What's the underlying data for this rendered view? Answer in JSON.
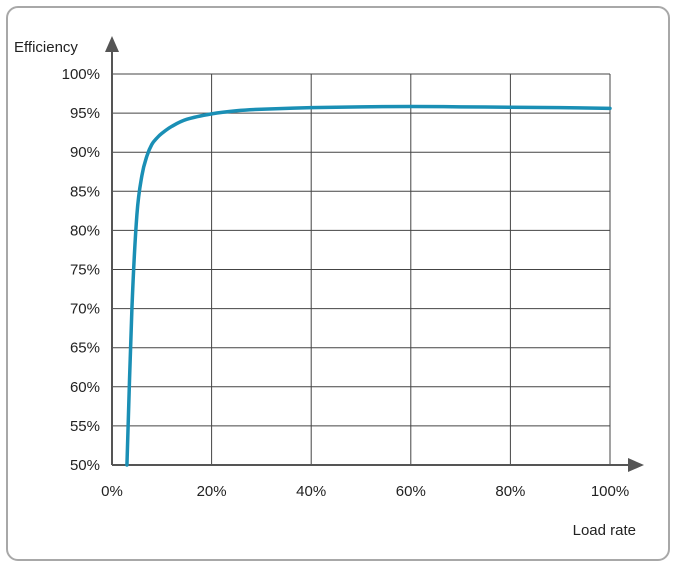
{
  "chart_data": {
    "type": "line",
    "xlabel": "Load rate",
    "ylabel": "Efficiency",
    "xlim": [
      0,
      100
    ],
    "ylim": [
      50,
      100
    ],
    "x_ticks": [
      "0%",
      "20%",
      "40%",
      "60%",
      "80%",
      "100%"
    ],
    "y_ticks": [
      "50%",
      "55%",
      "60%",
      "65%",
      "70%",
      "75%",
      "80%",
      "85%",
      "90%",
      "95%",
      "100%"
    ],
    "grid": true,
    "colors": {
      "series": "#1a8fb5",
      "axis": "#555555",
      "grid": "#444444"
    },
    "series": [
      {
        "x": [
          3,
          4,
          5,
          6,
          7,
          8,
          9,
          10,
          12,
          15,
          20,
          25,
          30,
          40,
          50,
          60,
          70,
          80,
          90,
          100
        ],
        "y": [
          50,
          70,
          82,
          87,
          89.5,
          91,
          91.8,
          92.4,
          93.3,
          94.2,
          94.9,
          95.3,
          95.5,
          95.7,
          95.8,
          95.85,
          95.8,
          95.75,
          95.7,
          95.6
        ]
      }
    ]
  }
}
